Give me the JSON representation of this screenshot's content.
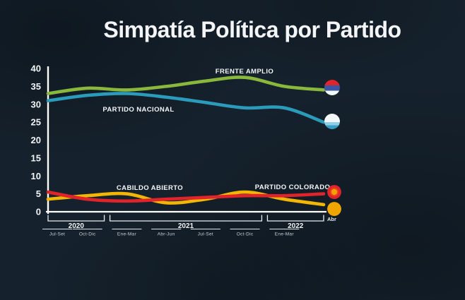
{
  "page": {
    "title": "Simpatía Política por Partido",
    "background_color": "#15212c",
    "axis_color": "#ffffff"
  },
  "chart_data": {
    "type": "line",
    "title": "Simpatía Política por Partido",
    "xlabel": "",
    "ylabel": "",
    "ylim": [
      0,
      40
    ],
    "yticks": [
      0,
      5,
      10,
      15,
      20,
      25,
      30,
      35,
      40
    ],
    "grid": false,
    "legend_position": "inline-labels",
    "categories": [
      "Jul-Set 2020",
      "Oct-Dic 2020",
      "Ene-Mar 2021",
      "Abr-Jun 2021",
      "Jul-Set 2021",
      "Oct-Dic 2021",
      "Ene-Mar 2022",
      "Abr 2022"
    ],
    "x_groups": [
      {
        "year": "2020",
        "quarters": [
          "Jul-Set",
          "Oct-Dic"
        ]
      },
      {
        "year": "2021",
        "quarters": [
          "Ene-Mar",
          "Abr-Jun",
          "Jul-Set",
          "Oct-Dic"
        ]
      },
      {
        "year": "2022",
        "quarters": [
          "Ene-Mar"
        ]
      }
    ],
    "trailing_x_label": "Abr",
    "series": [
      {
        "name": "FRENTE AMPLIO",
        "color": "#8ab83c",
        "icon": "frente-amplio-flag-icon",
        "values": [
          33,
          34.5,
          34,
          35,
          36.5,
          37.5,
          35,
          34
        ]
      },
      {
        "name": "PARTIDO NACIONAL",
        "color": "#2a9bba",
        "icon": "partido-nacional-flag-icon",
        "values": [
          31,
          32.5,
          33,
          32,
          30.5,
          29,
          29,
          25
        ]
      },
      {
        "name": "CABILDO ABIERTO",
        "color": "#f2b705",
        "icon": "cabildo-abierto-dot-icon",
        "values": [
          3.5,
          4.5,
          5,
          2.5,
          3.5,
          5.5,
          3.5,
          2
        ]
      },
      {
        "name": "PARTIDO COLORADO",
        "color": "#e0242c",
        "icon": "partido-colorado-dot-icon",
        "values": [
          5.5,
          3.5,
          3,
          3.5,
          4,
          4.5,
          4.5,
          5
        ]
      }
    ]
  }
}
